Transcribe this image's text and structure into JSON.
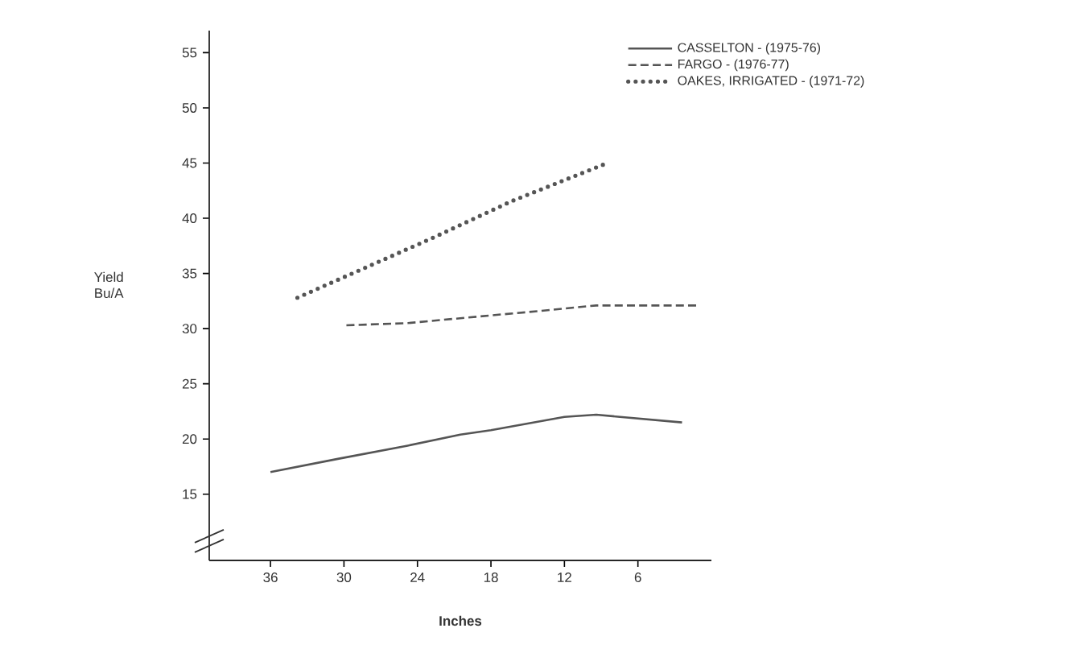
{
  "chart_data": {
    "type": "line",
    "xlabel": "Inches",
    "ylabel": "Yield Bu/A",
    "xlim": [
      41,
      0
    ],
    "ylim": [
      9,
      57
    ],
    "xticks": [
      36,
      30,
      24,
      18,
      12,
      6
    ],
    "yticks": [
      15,
      20,
      25,
      30,
      35,
      40,
      45,
      50,
      55
    ],
    "legend": "top right",
    "grid": false,
    "marker": "none",
    "series": [
      {
        "name": "CASSELTON - (1975-76)",
        "color": "#555555",
        "line_style": "solid",
        "x": [
          36,
          30.5,
          24.8,
          20.5,
          18,
          12,
          9.4,
          2.4
        ],
        "values": [
          17.0,
          18.2,
          19.4,
          20.4,
          20.8,
          22.0,
          22.2,
          21.5
        ]
      },
      {
        "name": "FARGO - (1976-77)",
        "color": "#555555",
        "line_style": "dashed",
        "x": [
          29.8,
          24.8,
          18,
          14,
          9.4,
          1.0
        ],
        "values": [
          30.3,
          30.5,
          31.2,
          31.6,
          32.1,
          32.1
        ]
      },
      {
        "name": "OAKES, IRRIGATED - (1971-72)",
        "color": "#555555",
        "line_style": "dotted",
        "x": [
          33.8,
          22.8,
          16.2,
          8.5
        ],
        "values": [
          32.8,
          38.2,
          41.6,
          45.0
        ]
      }
    ]
  }
}
